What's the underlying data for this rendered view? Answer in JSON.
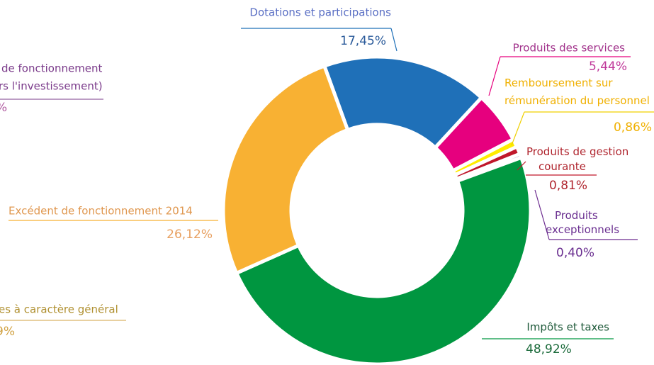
{
  "chart_data": {
    "type": "donut",
    "categories": [
      "Dotations et participations",
      "Produits des services",
      "Remboursement sur rémunération du personnel",
      "Produits de gestion courante",
      "Produits exceptionnels",
      "Impôts et taxes",
      "Excédent de fonctionnement 2014"
    ],
    "values": [
      17.45,
      5.44,
      0.86,
      0.81,
      0.4,
      48.92,
      26.12
    ],
    "value_labels": [
      "17,45%",
      "5,44%",
      "0,86%",
      "0,81%",
      "0,40%",
      "48,92%",
      "26,12%"
    ],
    "colors": [
      "#1f70b8",
      "#e6007e",
      "#ffec00",
      "#c0172b",
      "#6c2b8f",
      "#009640",
      "#f8b133"
    ]
  },
  "clipped_texts": [
    "de fonctionnement",
    "rs l'investissement)",
    "%",
    "es à caractère général",
    "9%"
  ]
}
